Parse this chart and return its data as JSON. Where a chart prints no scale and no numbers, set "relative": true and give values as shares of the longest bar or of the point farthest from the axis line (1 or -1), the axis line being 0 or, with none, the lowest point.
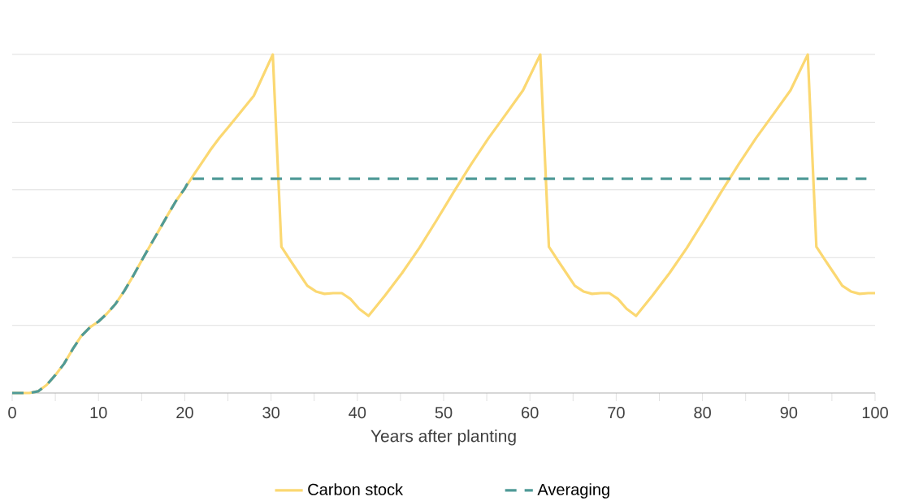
{
  "chart_data": {
    "type": "line",
    "xlabel": "Years after planting",
    "relative": true,
    "xlim": [
      0,
      100
    ],
    "xticks": [
      0,
      10,
      20,
      30,
      40,
      50,
      60,
      70,
      80,
      90,
      100
    ],
    "grid": "y",
    "legend": "bottom",
    "marker": "none",
    "series": [
      {
        "name": "Carbon stock",
        "color": "#fbd872",
        "line_style": "solid",
        "x": [
          0,
          2,
          3,
          4,
          5,
          6,
          7,
          8,
          9,
          10,
          11,
          12,
          13,
          14,
          15,
          16,
          17,
          18,
          19,
          20,
          21,
          22,
          23,
          24,
          25,
          26,
          28,
          30.2,
          31.2,
          32.2,
          33.2,
          34.2,
          35.2,
          36.2,
          37.2,
          38.2,
          39.2,
          40.2,
          41.3,
          43.2,
          45.2,
          47.2,
          49.2,
          51.2,
          53.2,
          55.2,
          57.2,
          59.2,
          61.2,
          62.2,
          63.2,
          64.2,
          65.2,
          66.2,
          67.2,
          68.2,
          69.2,
          70.2,
          71.2,
          72.3,
          74.2,
          76.2,
          78.2,
          80.2,
          82.2,
          84.2,
          86.2,
          88.2,
          90.2,
          92.2,
          93.2,
          94.2,
          95.2,
          96.2,
          97.2,
          98.2,
          99.2,
          100
        ],
        "values": [
          0,
          0,
          0.005,
          0.024,
          0.053,
          0.086,
          0.129,
          0.168,
          0.194,
          0.211,
          0.235,
          0.264,
          0.302,
          0.345,
          0.391,
          0.436,
          0.48,
          0.525,
          0.568,
          0.604,
          0.643,
          0.681,
          0.719,
          0.753,
          0.784,
          0.815,
          0.878,
          1,
          0.432,
          0.393,
          0.355,
          0.317,
          0.3,
          0.293,
          0.295,
          0.295,
          0.278,
          0.249,
          0.228,
          0.288,
          0.355,
          0.429,
          0.511,
          0.595,
          0.676,
          0.753,
          0.823,
          0.894,
          1,
          0.432,
          0.393,
          0.355,
          0.317,
          0.3,
          0.293,
          0.295,
          0.295,
          0.278,
          0.249,
          0.228,
          0.288,
          0.355,
          0.429,
          0.511,
          0.595,
          0.676,
          0.753,
          0.823,
          0.894,
          1,
          0.432,
          0.393,
          0.355,
          0.317,
          0.3,
          0.293,
          0.295,
          0.295
        ]
      },
      {
        "name": "Averaging",
        "color": "#4f9a97",
        "line_style": "dashed",
        "x": [
          0,
          2,
          3,
          4,
          5,
          6,
          7,
          8,
          9,
          10,
          11,
          12,
          13,
          14,
          15,
          16,
          17,
          18,
          19,
          20,
          20.6,
          99
        ],
        "values": [
          0,
          0,
          0.005,
          0.024,
          0.053,
          0.086,
          0.129,
          0.168,
          0.194,
          0.211,
          0.235,
          0.264,
          0.302,
          0.345,
          0.391,
          0.436,
          0.48,
          0.525,
          0.568,
          0.604,
          0.633,
          0.633
        ]
      }
    ]
  }
}
